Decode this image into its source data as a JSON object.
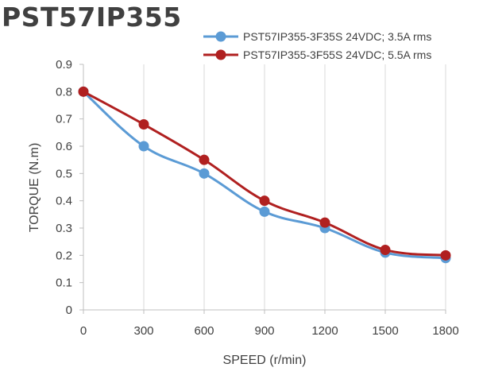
{
  "chart_data": {
    "type": "line",
    "title": "PST57IP355",
    "xlabel": "SPEED (r/min)",
    "ylabel": "TORQUE (N.m)",
    "x": [
      0,
      300,
      600,
      900,
      1200,
      1500,
      1800
    ],
    "xlim": [
      0,
      1800
    ],
    "ylim": [
      0,
      0.9
    ],
    "xticks": [
      "0",
      "300",
      "600",
      "900",
      "1200",
      "1500",
      "1800"
    ],
    "yticks": [
      "0",
      "0.1",
      "0.2",
      "0.3",
      "0.4",
      "0.5",
      "0.6",
      "0.7",
      "0.8",
      "0.9"
    ],
    "grid": "vertical",
    "legend_position": "top-right",
    "series": [
      {
        "name": "PST57IP355-3F35S 24VDC; 3.5A rms",
        "color": "#5b9bd5",
        "values": [
          0.8,
          0.6,
          0.5,
          0.36,
          0.3,
          0.21,
          0.19
        ]
      },
      {
        "name": "PST57IP355-3F55S 24VDC; 5.5A rms",
        "color": "#b02020",
        "values": [
          0.8,
          0.68,
          0.55,
          0.4,
          0.32,
          0.22,
          0.2
        ]
      }
    ]
  }
}
